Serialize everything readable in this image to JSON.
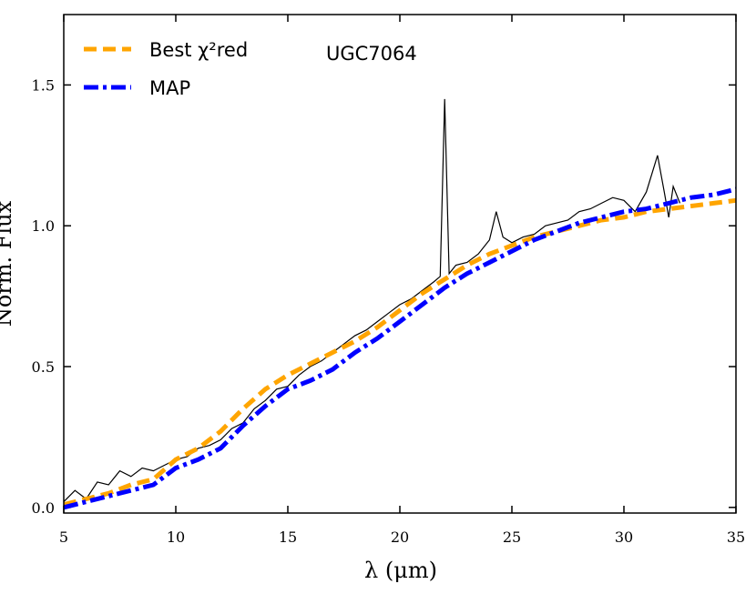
{
  "chart_data": {
    "type": "line",
    "xlabel": "λ (μm)",
    "ylabel": "Norm. Flux",
    "annotation": "UGC7064",
    "xlim": [
      5,
      35
    ],
    "ylim": [
      -0.02,
      1.75
    ],
    "xticks": [
      5,
      10,
      15,
      20,
      25,
      30,
      35
    ],
    "yticks": [
      {
        "value": 0,
        "label": "0.0"
      },
      0.5,
      {
        "value": 1,
        "label": "1.0"
      },
      1.5
    ],
    "legend": "upper left",
    "observed": {
      "color": "#000000",
      "x": [
        5,
        5.5,
        6,
        6.5,
        7,
        7.5,
        8,
        8.5,
        9,
        9.5,
        10,
        10.5,
        11,
        11.5,
        12,
        12.5,
        13,
        13.5,
        14,
        14.5,
        15,
        15.5,
        16,
        16.5,
        17,
        17.5,
        18,
        18.5,
        19,
        19.5,
        20,
        20.5,
        21,
        21.5,
        21.8,
        22,
        22.2,
        22.5,
        23,
        23.5,
        24,
        24.3,
        24.6,
        25,
        25.5,
        26,
        26.5,
        27,
        27.5,
        28,
        28.5,
        29,
        29.5,
        30,
        30.5,
        31,
        31.5,
        31.8,
        32,
        32.2,
        32.5
      ],
      "values": [
        0.02,
        0.06,
        0.03,
        0.09,
        0.08,
        0.13,
        0.11,
        0.14,
        0.13,
        0.15,
        0.17,
        0.18,
        0.21,
        0.22,
        0.24,
        0.28,
        0.3,
        0.35,
        0.38,
        0.42,
        0.43,
        0.47,
        0.5,
        0.52,
        0.55,
        0.58,
        0.61,
        0.63,
        0.66,
        0.69,
        0.72,
        0.74,
        0.77,
        0.8,
        0.82,
        1.45,
        0.83,
        0.86,
        0.87,
        0.9,
        0.95,
        1.05,
        0.96,
        0.94,
        0.96,
        0.97,
        1.0,
        1.01,
        1.02,
        1.05,
        1.06,
        1.08,
        1.1,
        1.09,
        1.05,
        1.12,
        1.25,
        1.12,
        1.03,
        1.14,
        1.08
      ]
    },
    "x": [
      5,
      6,
      7,
      8,
      9,
      10,
      11,
      12,
      13,
      14,
      15,
      16,
      17,
      18,
      19,
      20,
      21,
      22,
      23,
      24,
      25,
      26,
      27,
      28,
      29,
      30,
      31,
      32,
      33,
      34,
      35
    ],
    "series": [
      {
        "name": "Best χ²red",
        "color": "#ffa500",
        "dash": "dashed",
        "values": [
          0.01,
          0.03,
          0.05,
          0.08,
          0.1,
          0.17,
          0.21,
          0.27,
          0.35,
          0.42,
          0.47,
          0.51,
          0.55,
          0.59,
          0.64,
          0.7,
          0.76,
          0.81,
          0.86,
          0.9,
          0.93,
          0.96,
          0.98,
          1.0,
          1.02,
          1.03,
          1.05,
          1.06,
          1.07,
          1.08,
          1.09
        ]
      },
      {
        "name": "MAP",
        "color": "#0000ff",
        "dash": "dashdot",
        "values": [
          0.0,
          0.02,
          0.04,
          0.06,
          0.08,
          0.14,
          0.17,
          0.21,
          0.29,
          0.36,
          0.42,
          0.45,
          0.49,
          0.55,
          0.6,
          0.66,
          0.72,
          0.78,
          0.83,
          0.87,
          0.91,
          0.95,
          0.98,
          1.01,
          1.03,
          1.05,
          1.06,
          1.08,
          1.1,
          1.11,
          1.13
        ]
      }
    ]
  }
}
